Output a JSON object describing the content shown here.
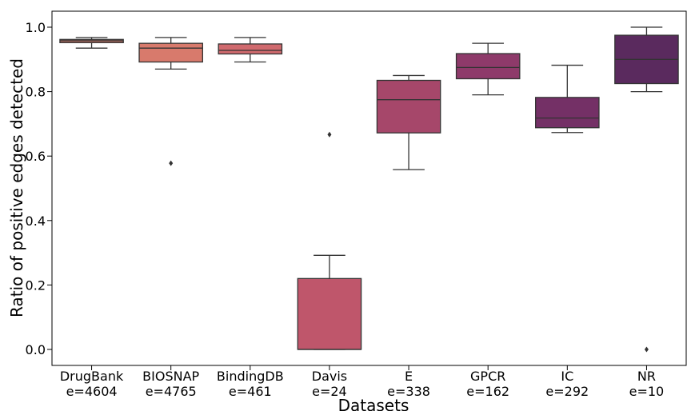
{
  "chart_data": {
    "type": "box",
    "xlabel": "Datasets",
    "ylabel": "Ratio of positive edges detected",
    "ylim": [
      -0.05,
      1.05
    ],
    "yticks": [
      "0.0",
      "0.2",
      "0.4",
      "0.6",
      "0.8",
      "1.0"
    ],
    "ytick_values": [
      0.0,
      0.2,
      0.4,
      0.6,
      0.8,
      1.0
    ],
    "grid": false,
    "categories": [
      {
        "name": "DrugBank",
        "count": "e=4604",
        "color": "#c8786a",
        "whislo": 0.935,
        "q1": 0.952,
        "median": 0.958,
        "q3": 0.962,
        "whishi": 0.968,
        "fliers": []
      },
      {
        "name": "BIOSNAP",
        "count": "e=4765",
        "color": "#d87a6c",
        "whislo": 0.87,
        "q1": 0.892,
        "median": 0.935,
        "q3": 0.95,
        "whishi": 0.968,
        "fliers": [
          0.578
        ]
      },
      {
        "name": "BindingDB",
        "count": "e=461",
        "color": "#d06a6e",
        "whislo": 0.892,
        "q1": 0.917,
        "median": 0.928,
        "q3": 0.948,
        "whishi": 0.968,
        "fliers": []
      },
      {
        "name": "Davis",
        "count": "e=24",
        "color": "#bf566b",
        "whislo": 0.0,
        "q1": 0.0,
        "median": 0.0,
        "q3": 0.22,
        "whishi": 0.292,
        "fliers": [
          0.667
        ]
      },
      {
        "name": "E",
        "count": "e=338",
        "color": "#a6476a",
        "whislo": 0.558,
        "q1": 0.672,
        "median": 0.775,
        "q3": 0.835,
        "whishi": 0.85,
        "fliers": []
      },
      {
        "name": "GPCR",
        "count": "e=162",
        "color": "#8e3a6a",
        "whislo": 0.79,
        "q1": 0.84,
        "median": 0.875,
        "q3": 0.918,
        "whishi": 0.95,
        "fliers": []
      },
      {
        "name": "IC",
        "count": "e=292",
        "color": "#743066",
        "whislo": 0.673,
        "q1": 0.688,
        "median": 0.718,
        "q3": 0.782,
        "whishi": 0.882,
        "fliers": []
      },
      {
        "name": "NR",
        "count": "e=10",
        "color": "#5a2a5e",
        "whislo": 0.8,
        "q1": 0.825,
        "median": 0.9,
        "q3": 0.975,
        "whishi": 1.0,
        "fliers": [
          0.0
        ]
      }
    ]
  }
}
